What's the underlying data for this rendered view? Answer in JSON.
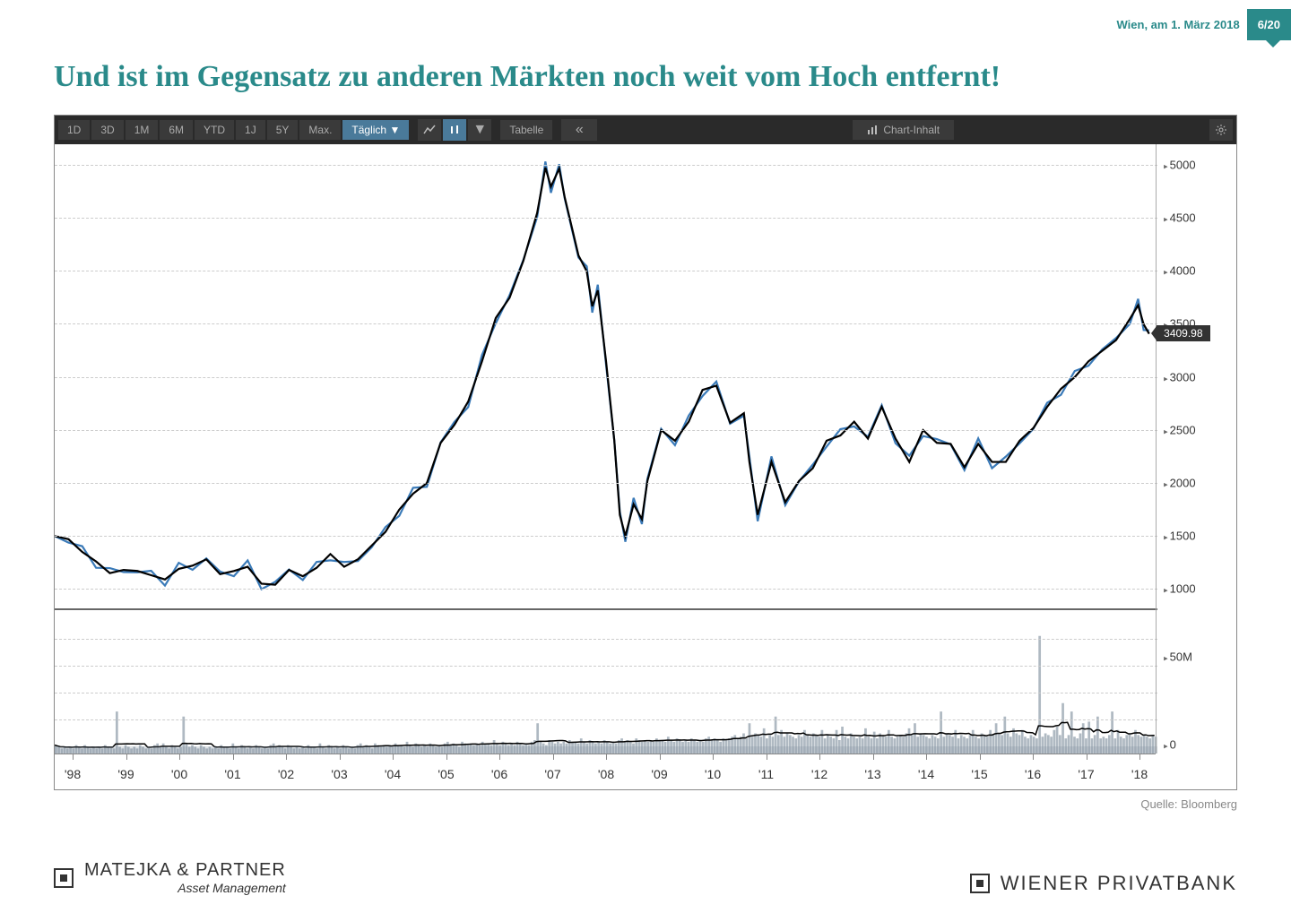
{
  "header": {
    "date_text": "Wien, am 1. März 2018",
    "page_indicator": "6/20"
  },
  "title": "Und ist im Gegensatz zu anderen Märkten noch weit vom Hoch entfernt!",
  "toolbar": {
    "ranges": [
      "1D",
      "3D",
      "1M",
      "6M",
      "YTD",
      "1J",
      "5Y",
      "Max."
    ],
    "interval": "Täglich",
    "tabelle": "Tabelle",
    "chart_inhalt": "Chart-Inhalt"
  },
  "chart": {
    "type": "line",
    "background_color": "#ffffff",
    "grid_color": "#cccccc",
    "grid_dash": "4,4",
    "line_colors": [
      "#000000",
      "#3a7ab8"
    ],
    "line_width_black": 2.2,
    "line_width_blue": 2.2,
    "y_axis": {
      "min": 800,
      "max": 5200,
      "ticks": [
        1000,
        1500,
        2000,
        2500,
        3000,
        3500,
        4000,
        4500,
        5000
      ],
      "current_value": 3409.98,
      "label_fontsize": 13,
      "label_color": "#333333"
    },
    "x_axis": {
      "labels": [
        "'98",
        "'99",
        "'00",
        "'01",
        "'02",
        "'03",
        "'04",
        "'05",
        "'06",
        "'07",
        "'08",
        "'09",
        "'10",
        "'11",
        "'12",
        "'13",
        "'14",
        "'15",
        "'16",
        "'17",
        "'18"
      ],
      "label_fontsize": 14,
      "label_color": "#333333"
    },
    "price_series": [
      [
        0.0,
        1500
      ],
      [
        0.5,
        1470
      ],
      [
        1.0,
        1350
      ],
      [
        1.5,
        1260
      ],
      [
        2.0,
        1150
      ],
      [
        2.5,
        1180
      ],
      [
        3.0,
        1170
      ],
      [
        3.5,
        1130
      ],
      [
        4.0,
        1090
      ],
      [
        4.5,
        1190
      ],
      [
        5.0,
        1220
      ],
      [
        5.5,
        1280
      ],
      [
        6.0,
        1140
      ],
      [
        6.5,
        1170
      ],
      [
        7.0,
        1210
      ],
      [
        7.5,
        1050
      ],
      [
        8.0,
        1040
      ],
      [
        8.5,
        1180
      ],
      [
        9.0,
        1120
      ],
      [
        9.5,
        1200
      ],
      [
        10.0,
        1330
      ],
      [
        10.5,
        1210
      ],
      [
        11.0,
        1280
      ],
      [
        11.5,
        1410
      ],
      [
        12.0,
        1540
      ],
      [
        12.5,
        1750
      ],
      [
        13.0,
        1900
      ],
      [
        13.5,
        2000
      ],
      [
        14.0,
        2380
      ],
      [
        14.5,
        2550
      ],
      [
        15.0,
        2770
      ],
      [
        15.5,
        3150
      ],
      [
        16.0,
        3560
      ],
      [
        16.5,
        3750
      ],
      [
        17.0,
        4100
      ],
      [
        17.5,
        4550
      ],
      [
        17.8,
        4980
      ],
      [
        18.0,
        4800
      ],
      [
        18.3,
        4970
      ],
      [
        18.5,
        4700
      ],
      [
        19.0,
        4150
      ],
      [
        19.3,
        4000
      ],
      [
        19.5,
        3670
      ],
      [
        19.7,
        3820
      ],
      [
        20.0,
        3150
      ],
      [
        20.3,
        2400
      ],
      [
        20.5,
        1700
      ],
      [
        20.7,
        1500
      ],
      [
        21.0,
        1800
      ],
      [
        21.3,
        1660
      ],
      [
        21.5,
        2020
      ],
      [
        22.0,
        2500
      ],
      [
        22.5,
        2400
      ],
      [
        23.0,
        2580
      ],
      [
        23.5,
        2880
      ],
      [
        24.0,
        2920
      ],
      [
        24.5,
        2570
      ],
      [
        25.0,
        2660
      ],
      [
        25.2,
        2200
      ],
      [
        25.5,
        1700
      ],
      [
        26.0,
        2200
      ],
      [
        26.5,
        1820
      ],
      [
        27.0,
        2020
      ],
      [
        27.5,
        2140
      ],
      [
        28.0,
        2400
      ],
      [
        28.5,
        2450
      ],
      [
        29.0,
        2580
      ],
      [
        29.5,
        2420
      ],
      [
        30.0,
        2720
      ],
      [
        30.5,
        2420
      ],
      [
        31.0,
        2200
      ],
      [
        31.5,
        2500
      ],
      [
        32.0,
        2380
      ],
      [
        32.5,
        2370
      ],
      [
        33.0,
        2150
      ],
      [
        33.5,
        2370
      ],
      [
        34.0,
        2200
      ],
      [
        34.5,
        2200
      ],
      [
        35.0,
        2400
      ],
      [
        35.5,
        2520
      ],
      [
        36.0,
        2720
      ],
      [
        36.5,
        2890
      ],
      [
        37.0,
        3000
      ],
      [
        37.5,
        3150
      ],
      [
        38.0,
        3250
      ],
      [
        38.5,
        3350
      ],
      [
        39.0,
        3550
      ],
      [
        39.3,
        3680
      ],
      [
        39.5,
        3500
      ],
      [
        39.7,
        3409.98
      ]
    ],
    "price_x_domain": [
      0,
      40
    ],
    "volume_panel": {
      "y_ticks": [
        "50M",
        "0"
      ],
      "max": 80,
      "baseline_color": "#7a8a9a",
      "bar_color": "#7a8a9a",
      "avg_line_color": "#000000",
      "series": [
        5,
        4,
        3,
        4,
        3,
        4,
        3,
        5,
        4,
        3,
        5,
        4,
        3,
        4,
        3,
        4,
        3,
        5,
        4,
        4,
        3,
        25,
        4,
        3,
        5,
        4,
        3,
        4,
        3,
        5,
        4,
        3,
        4,
        3,
        5,
        6,
        4,
        6,
        4,
        3,
        5,
        4,
        3,
        4,
        22,
        6,
        4,
        5,
        4,
        3,
        5,
        4,
        3,
        4,
        3,
        4,
        3,
        5,
        4,
        4,
        3,
        6,
        4,
        3,
        5,
        4,
        3,
        4,
        3,
        5,
        4,
        3,
        4,
        3,
        5,
        6,
        4,
        5,
        4,
        3,
        5,
        4,
        3,
        4,
        3,
        4,
        3,
        5,
        4,
        4,
        3,
        6,
        4,
        3,
        5,
        4,
        3,
        4,
        3,
        5,
        4,
        3,
        4,
        3,
        5,
        6,
        4,
        5,
        4,
        3,
        6,
        5,
        4,
        5,
        4,
        5,
        4,
        6,
        5,
        5,
        4,
        7,
        5,
        4,
        6,
        5,
        4,
        5,
        4,
        6,
        5,
        4,
        5,
        4,
        6,
        7,
        5,
        6,
        5,
        4,
        7,
        6,
        5,
        6,
        5,
        6,
        5,
        7,
        6,
        6,
        5,
        8,
        6,
        5,
        7,
        6,
        5,
        6,
        5,
        7,
        6,
        5,
        6,
        5,
        7,
        8,
        18,
        7,
        6,
        5,
        8,
        7,
        6,
        7,
        6,
        7,
        6,
        8,
        7,
        7,
        6,
        9,
        7,
        6,
        8,
        7,
        6,
        7,
        6,
        8,
        7,
        6,
        7,
        6,
        8,
        9,
        7,
        8,
        7,
        6,
        9,
        8,
        7,
        8,
        7,
        8,
        7,
        9,
        8,
        8,
        7,
        10,
        8,
        7,
        9,
        8,
        7,
        8,
        7,
        9,
        8,
        7,
        8,
        7,
        9,
        10,
        8,
        9,
        8,
        7,
        9,
        8,
        9,
        10,
        11,
        9,
        10,
        12,
        9,
        18,
        10,
        12,
        11,
        10,
        15,
        9,
        11,
        10,
        22,
        11,
        14,
        10,
        12,
        11,
        10,
        9,
        11,
        10,
        14,
        11,
        10,
        12,
        11,
        10,
        14,
        9,
        11,
        10,
        9,
        14,
        8,
        16,
        10,
        9,
        12,
        10,
        9,
        10,
        9,
        15,
        10,
        9,
        13,
        9,
        12,
        11,
        10,
        14,
        10,
        9,
        10,
        11,
        10,
        12,
        15,
        11,
        18,
        10,
        12,
        11,
        10,
        9,
        11,
        10,
        9,
        25,
        10,
        12,
        11,
        10,
        14,
        9,
        11,
        10,
        9,
        11,
        14,
        10,
        9,
        12,
        11,
        10,
        14,
        11,
        18,
        12,
        11,
        22,
        12,
        10,
        15,
        12,
        11,
        14,
        10,
        9,
        11,
        10,
        9,
        70,
        10,
        12,
        11,
        10,
        14,
        16,
        11,
        30,
        9,
        11,
        25,
        10,
        9,
        12,
        18,
        9,
        19,
        9,
        11,
        22,
        9,
        10,
        9,
        11,
        25,
        9,
        14,
        10,
        9,
        11,
        12,
        10,
        14,
        11,
        10,
        11,
        10,
        9,
        11,
        10
      ]
    }
  },
  "source": "Quelle: Bloomberg",
  "footer": {
    "left_brand": "MATEJKA & PARTNER",
    "left_sub": "Asset Management",
    "right_brand": "WIENER PRIVATBANK"
  }
}
